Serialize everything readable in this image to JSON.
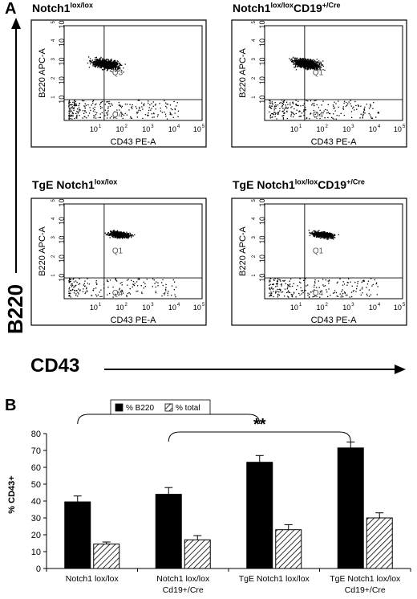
{
  "panel_a_label": "A",
  "panel_b_label": "B",
  "flow_panels": [
    {
      "title_base": "Notch1",
      "title_sup": "lox/lox",
      "title_suffix": "",
      "title_suffix_sup": "",
      "q_top": "Q3",
      "q_bottom": "Q4",
      "xlabel": "CD43 PE-A",
      "ylabel": "B220 APC-A"
    },
    {
      "title_base": "Notch1",
      "title_sup": "lox/lox",
      "title_suffix": "CD19",
      "title_suffix_sup": "+/Cre",
      "q_top": "Q1",
      "q_bottom": "Q4",
      "xlabel": "CD43 PE-A",
      "ylabel": "B220 APC-A"
    },
    {
      "title_base": "TgE Notch1",
      "title_sup": "lox/lox",
      "title_suffix": "",
      "title_suffix_sup": "",
      "q_top": "Q1",
      "q_bottom": "Q4",
      "xlabel": "CD43 PE-A",
      "ylabel": "B220 APC-A"
    },
    {
      "title_base": "TgE Notch1",
      "title_sup": "lox/lox",
      "title_suffix": "CD19",
      "title_suffix_sup": "+/Cre",
      "q_top": "Q1",
      "q_bottom": "Q4",
      "xlabel": "CD43 PE-A",
      "ylabel": "B220 APC-A"
    }
  ],
  "flow_ticks": [
    "10",
    "10",
    "10",
    "10",
    "10"
  ],
  "flow_tick_exps": [
    "1",
    "2",
    "3",
    "4",
    "5"
  ],
  "big_axis_y": "B220",
  "big_axis_x": "CD43",
  "chart_data": {
    "type": "bar",
    "categories": [
      "Notch1 lox/lox",
      "Notch1 lox/lox\nCd19+/Cre",
      "TgE Notch1 lox/lox",
      "TgE Notch1 lox/lox\nCd19+/Cre"
    ],
    "series": [
      {
        "name": "% B220",
        "values": [
          39.5,
          44,
          63,
          71.5
        ],
        "errors": [
          3.5,
          4,
          4,
          3.5
        ],
        "color": "#000000"
      },
      {
        "name": "% total",
        "values": [
          14.5,
          17,
          23,
          30
        ],
        "errors": [
          1.2,
          2.5,
          3,
          3
        ],
        "color": "hatched"
      }
    ],
    "ylabel": "% CD43+",
    "ylim": [
      0,
      80
    ],
    "yticks": [
      0,
      10,
      20,
      30,
      40,
      50,
      60,
      70,
      80
    ],
    "legend_position": "top",
    "grid": false,
    "significance": [
      {
        "from": 0,
        "to": 2,
        "label": "*"
      },
      {
        "from": 1,
        "to": 3,
        "label": "**"
      }
    ]
  }
}
